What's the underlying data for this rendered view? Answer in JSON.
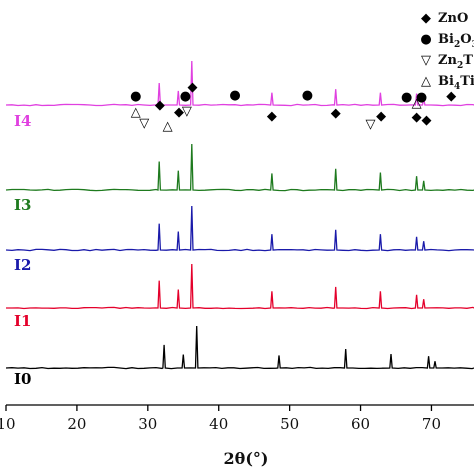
{
  "chart_data": {
    "type": "line",
    "xlabel": "2θ(°)",
    "xlim": [
      10,
      75
    ],
    "x_ticks": [
      10,
      20,
      30,
      40,
      50,
      60,
      70
    ],
    "grid": false,
    "legend_position": "top-right",
    "legend": [
      {
        "symbol": "◆",
        "label": "ZnO"
      },
      {
        "symbol": "●",
        "label_base": "Bi",
        "label_sub": "2",
        "label_rest": "O",
        "label_sub2": "3"
      },
      {
        "symbol": "▽",
        "label_base": "Zn",
        "label_sub": "2",
        "label_rest": "T"
      },
      {
        "symbol": "△",
        "label_base": "Bi",
        "label_sub": "4",
        "label_rest": "Ti"
      }
    ],
    "series": [
      {
        "name": "I0",
        "color": "#000000",
        "peaks": [
          [
            32.3,
            0.55
          ],
          [
            35.0,
            0.32
          ],
          [
            36.9,
            1.0
          ],
          [
            48.5,
            0.3
          ],
          [
            57.9,
            0.45
          ],
          [
            64.3,
            0.33
          ],
          [
            69.6,
            0.28
          ],
          [
            70.5,
            0.16
          ]
        ]
      },
      {
        "name": "I1",
        "color": "#e4002b",
        "peaks": [
          [
            31.6,
            0.62
          ],
          [
            34.3,
            0.42
          ],
          [
            36.2,
            1.0
          ],
          [
            47.5,
            0.38
          ],
          [
            56.5,
            0.48
          ],
          [
            62.8,
            0.38
          ],
          [
            67.9,
            0.3
          ],
          [
            68.9,
            0.2
          ]
        ]
      },
      {
        "name": "I2",
        "color": "#1a1aaa",
        "peaks": [
          [
            31.6,
            0.6
          ],
          [
            34.3,
            0.42
          ],
          [
            36.2,
            1.0
          ],
          [
            47.5,
            0.36
          ],
          [
            56.5,
            0.46
          ],
          [
            62.8,
            0.36
          ],
          [
            67.9,
            0.3
          ],
          [
            68.9,
            0.2
          ]
        ]
      },
      {
        "name": "I3",
        "color": "#1e7a1e",
        "peaks": [
          [
            31.6,
            0.62
          ],
          [
            34.3,
            0.42
          ],
          [
            36.2,
            1.0
          ],
          [
            47.5,
            0.36
          ],
          [
            56.5,
            0.46
          ],
          [
            62.8,
            0.38
          ],
          [
            67.9,
            0.3
          ],
          [
            68.9,
            0.2
          ]
        ]
      },
      {
        "name": "I4",
        "color": "#e040e0",
        "peaks": [
          [
            31.6,
            0.5
          ],
          [
            34.3,
            0.32
          ],
          [
            36.2,
            1.0
          ],
          [
            47.5,
            0.28
          ],
          [
            56.5,
            0.36
          ],
          [
            62.8,
            0.28
          ],
          [
            67.9,
            0.26
          ],
          [
            68.9,
            0.16
          ]
        ]
      }
    ],
    "phase_markers": [
      {
        "symbol": "△",
        "x": 28.3,
        "level": 1
      },
      {
        "symbol": "●",
        "x": 28.3,
        "level": 0
      },
      {
        "symbol": "▽",
        "x": 29.5,
        "level": 0
      },
      {
        "symbol": "◆",
        "x": 31.7,
        "level": 1
      },
      {
        "symbol": "△",
        "x": 32.8,
        "level": 0
      },
      {
        "symbol": "◆",
        "x": 34.4,
        "level": 1
      },
      {
        "symbol": "●",
        "x": 35.3,
        "level": 0
      },
      {
        "symbol": "▽",
        "x": 35.5,
        "level": 1
      },
      {
        "symbol": "◆",
        "x": 36.3,
        "level": 2
      },
      {
        "symbol": "●",
        "x": 42.3,
        "level": 0
      },
      {
        "symbol": "◆",
        "x": 47.5,
        "level": 1
      },
      {
        "symbol": "●",
        "x": 52.5,
        "level": 0
      },
      {
        "symbol": "◆",
        "x": 56.5,
        "level": 1
      },
      {
        "symbol": "▽",
        "x": 61.4,
        "level": 0
      },
      {
        "symbol": "◆",
        "x": 62.9,
        "level": 1
      },
      {
        "symbol": "●",
        "x": 66.5,
        "level": 0
      },
      {
        "symbol": "△",
        "x": 67.9,
        "level": 2
      },
      {
        "symbol": "◆",
        "x": 67.9,
        "level": 1
      },
      {
        "symbol": "●",
        "x": 68.6,
        "level": 0
      },
      {
        "symbol": "◆",
        "x": 69.3,
        "level": 1
      },
      {
        "symbol": "◆",
        "x": 72.8,
        "level": 0
      }
    ]
  }
}
